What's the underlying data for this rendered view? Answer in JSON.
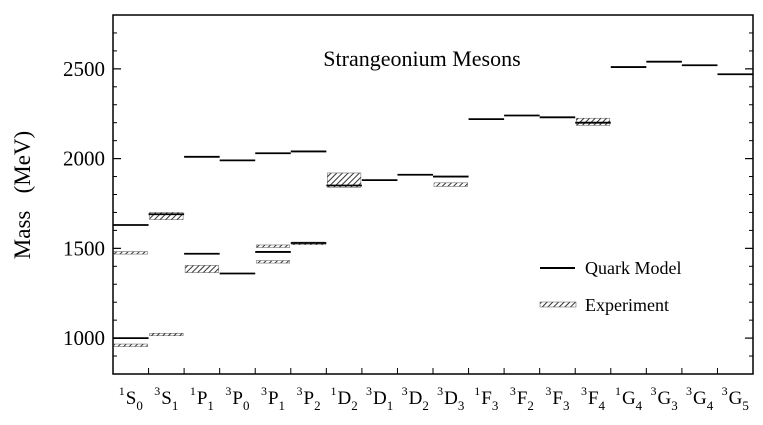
{
  "chart_data": {
    "type": "level-diagram",
    "title": "Strangeonium Mesons",
    "ylabel": "Mass   (MeV)",
    "xlabel": "",
    "ylim": [
      800,
      2800
    ],
    "yticks": [
      1000,
      1500,
      2000,
      2500
    ],
    "categories": [
      {
        "sup": "1",
        "letter": "S",
        "sub": "0"
      },
      {
        "sup": "3",
        "letter": "S",
        "sub": "1"
      },
      {
        "sup": "1",
        "letter": "P",
        "sub": "1"
      },
      {
        "sup": "3",
        "letter": "P",
        "sub": "0"
      },
      {
        "sup": "3",
        "letter": "P",
        "sub": "1"
      },
      {
        "sup": "3",
        "letter": "P",
        "sub": "2"
      },
      {
        "sup": "1",
        "letter": "D",
        "sub": "2"
      },
      {
        "sup": "3",
        "letter": "D",
        "sub": "1"
      },
      {
        "sup": "3",
        "letter": "D",
        "sub": "2"
      },
      {
        "sup": "3",
        "letter": "D",
        "sub": "3"
      },
      {
        "sup": "1",
        "letter": "F",
        "sub": "3"
      },
      {
        "sup": "3",
        "letter": "F",
        "sub": "2"
      },
      {
        "sup": "3",
        "letter": "F",
        "sub": "3"
      },
      {
        "sup": "3",
        "letter": "F",
        "sub": "4"
      },
      {
        "sup": "1",
        "letter": "G",
        "sub": "4"
      },
      {
        "sup": "3",
        "letter": "G",
        "sub": "3"
      },
      {
        "sup": "3",
        "letter": "G",
        "sub": "4"
      },
      {
        "sup": "3",
        "letter": "G",
        "sub": "5"
      }
    ],
    "series": [
      {
        "name": "Quark Model",
        "style": "solid-line",
        "points": [
          {
            "state": 0,
            "mass": 1000
          },
          {
            "state": 0,
            "mass": 1630
          },
          {
            "state": 1,
            "mass": 1690
          },
          {
            "state": 2,
            "mass": 1470
          },
          {
            "state": 2,
            "mass": 2010
          },
          {
            "state": 3,
            "mass": 1360
          },
          {
            "state": 3,
            "mass": 1990
          },
          {
            "state": 4,
            "mass": 1480
          },
          {
            "state": 4,
            "mass": 2030
          },
          {
            "state": 5,
            "mass": 1530
          },
          {
            "state": 5,
            "mass": 2040
          },
          {
            "state": 6,
            "mass": 1850
          },
          {
            "state": 7,
            "mass": 1880
          },
          {
            "state": 8,
            "mass": 1910
          },
          {
            "state": 9,
            "mass": 1900
          },
          {
            "state": 10,
            "mass": 2220
          },
          {
            "state": 11,
            "mass": 2240
          },
          {
            "state": 12,
            "mass": 2230
          },
          {
            "state": 13,
            "mass": 2200
          },
          {
            "state": 14,
            "mass": 2510
          },
          {
            "state": 15,
            "mass": 2540
          },
          {
            "state": 16,
            "mass": 2520
          },
          {
            "state": 17,
            "mass": 2470
          }
        ]
      },
      {
        "name": "Experiment",
        "style": "hatched-band",
        "bands": [
          {
            "state": 0,
            "low": 955,
            "high": 965
          },
          {
            "state": 0,
            "low": 1470,
            "high": 1480
          },
          {
            "state": 1,
            "low": 1018,
            "high": 1022
          },
          {
            "state": 1,
            "low": 1660,
            "high": 1700
          },
          {
            "state": 2,
            "low": 1365,
            "high": 1405
          },
          {
            "state": 4,
            "low": 1420,
            "high": 1430
          },
          {
            "state": 4,
            "low": 1507,
            "high": 1517
          },
          {
            "state": 5,
            "low": 1520,
            "high": 1535
          },
          {
            "state": 6,
            "low": 1840,
            "high": 1920
          },
          {
            "state": 9,
            "low": 1845,
            "high": 1865
          },
          {
            "state": 13,
            "low": 2185,
            "high": 2225
          }
        ]
      }
    ],
    "legend": {
      "position": "lower-right"
    }
  },
  "colors": {
    "line": "#000000",
    "hatch": "#444444",
    "background": "#ffffff"
  }
}
